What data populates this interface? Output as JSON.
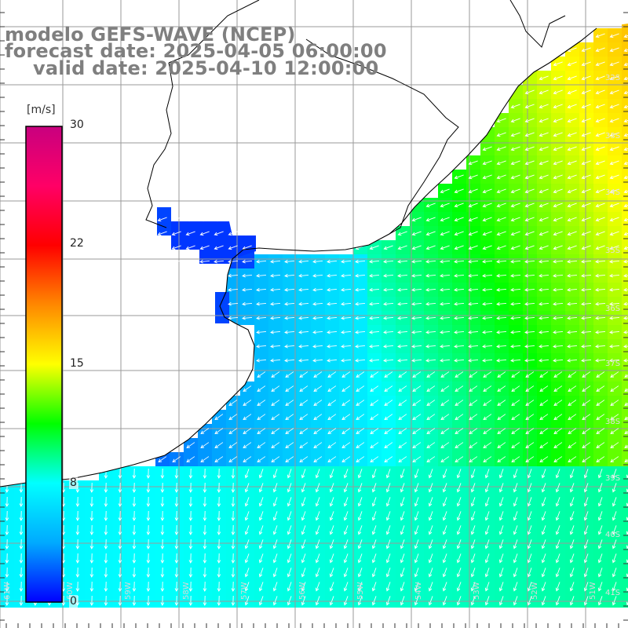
{
  "title": {
    "line1": "modelo GEFS-WAVE (NCEP)",
    "line2": "forecast date: 2025-04-05 06:00:00",
    "line3": "valid date: 2025-04-10 12:00:00"
  },
  "colorbar": {
    "unit": "[m/s]",
    "ticks": [
      {
        "label": "30",
        "value": 30
      },
      {
        "label": "22",
        "value": 22
      },
      {
        "label": "15",
        "value": 15
      },
      {
        "label": "8",
        "value": 8
      },
      {
        "label": "0",
        "value": 0
      }
    ],
    "range": [
      0,
      30
    ],
    "gradient": [
      "#0000ff",
      "#00aaff",
      "#00ffff",
      "#00ff00",
      "#ffff00",
      "#ff8800",
      "#ff0000",
      "#ff0066",
      "#c8007f"
    ]
  },
  "map": {
    "lat_labels": [
      "32S",
      "33S",
      "34S",
      "35S",
      "36S",
      "37S",
      "38S",
      "39S",
      "40S",
      "41S"
    ],
    "lon_labels": [
      "61W",
      "60W",
      "59W",
      "58W",
      "57W",
      "56W",
      "55W",
      "54W",
      "53W",
      "52W",
      "51W"
    ],
    "land_color": "#ffffff",
    "grid_color": "#9a9a9a",
    "coast_color": "#000000"
  }
}
